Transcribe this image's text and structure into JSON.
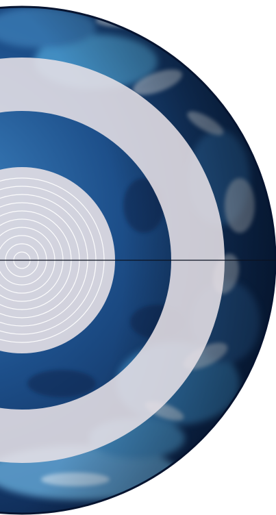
{
  "scene": {
    "subject": "earth-globe-with-concentric-rings",
    "colors": {
      "background": "#ffffff",
      "ocean_dark": "#0e2a55",
      "ocean_mid": "#1d4f8a",
      "ocean_light": "#3f86c4",
      "ocean_highlight": "#6cb2e0",
      "cloud": "#dde6ef",
      "ring": "#e6e0e6",
      "ring_opacity": 0.88,
      "inner_lines": "#ffffff",
      "meridian_line": "#0b1220"
    },
    "elements": [
      {
        "name": "globe",
        "icon": "earth-icon"
      },
      {
        "name": "outer-ring",
        "icon": "ring-icon"
      },
      {
        "name": "inner-disc",
        "icon": "disc-icon"
      },
      {
        "name": "concentric-circles",
        "icon": "target-icon"
      },
      {
        "name": "horizontal-line",
        "icon": "line-icon"
      }
    ]
  }
}
